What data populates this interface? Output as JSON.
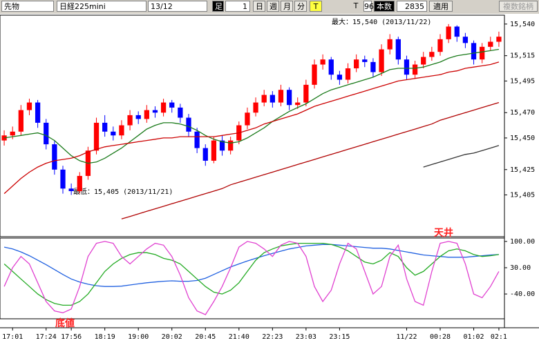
{
  "toolbar": {
    "instrument": "先物",
    "symbol": "日経225mini",
    "contract": "13/12",
    "bar_label": "足",
    "bar_size": "1",
    "day": "日",
    "week": "週",
    "month": "月",
    "minute": "分",
    "tick": "T",
    "tick2": "T",
    "count": "96",
    "count_label": "本数",
    "bars": "2835",
    "apply": "適用",
    "multi": "複数銘柄"
  },
  "chart_data": [
    {
      "type": "candlestick",
      "max_label": "最大：15,540 (2013/11/22)",
      "min_label": "最低：15,405 (2013/11/21)",
      "categories": [
        null,
        "17:01",
        null,
        null,
        null,
        "17:24",
        null,
        null,
        "17:56",
        null,
        null,
        null,
        "18:19",
        null,
        null,
        null,
        "19:00",
        null,
        null,
        null,
        "20:02",
        null,
        null,
        null,
        "20:45",
        null,
        null,
        null,
        "21:40",
        null,
        null,
        null,
        "22:23",
        null,
        null,
        null,
        "23:03",
        null,
        null,
        null,
        "23:15",
        null,
        null,
        null,
        null,
        null,
        null,
        null,
        "11/22",
        null,
        null,
        null,
        "00:28",
        null,
        null,
        null,
        "01:02",
        null,
        null,
        "02:1"
      ],
      "open": [
        15448,
        15452,
        15455,
        15472,
        15478,
        15462,
        15445,
        15425,
        15410,
        15408,
        15420,
        15440,
        15462,
        15455,
        15452,
        15460,
        15468,
        15465,
        15472,
        15470,
        15478,
        15474,
        15466,
        15455,
        15442,
        15432,
        15448,
        15440,
        15448,
        15460,
        15470,
        15478,
        15484,
        15478,
        15488,
        15476,
        15478,
        15492,
        15508,
        15512,
        15500,
        15496,
        15505,
        15512,
        15510,
        15502,
        15520,
        15528,
        15512,
        15500,
        15508,
        15514,
        15518,
        15528,
        15538,
        15530,
        15525,
        15512,
        15522,
        15526
      ],
      "high": [
        15456,
        15459,
        15476,
        15481,
        15480,
        15465,
        15448,
        15428,
        15414,
        15423,
        15443,
        15466,
        15468,
        15459,
        15464,
        15472,
        15471,
        15476,
        15475,
        15481,
        15480,
        15477,
        15469,
        15458,
        15445,
        15451,
        15452,
        15451,
        15463,
        15474,
        15482,
        15488,
        15487,
        15492,
        15490,
        15482,
        15496,
        15512,
        15516,
        15514,
        15503,
        15509,
        15516,
        15515,
        15513,
        15524,
        15532,
        15530,
        15515,
        15511,
        15518,
        15522,
        15532,
        15540,
        15539,
        15533,
        15527,
        15525,
        15530,
        15534
      ],
      "low": [
        15444,
        15449,
        15452,
        15468,
        15458,
        15441,
        15421,
        15406,
        15405,
        15406,
        15417,
        15437,
        15451,
        15448,
        15449,
        15456,
        15461,
        15462,
        15466,
        15467,
        15470,
        15462,
        15451,
        15438,
        15428,
        15430,
        15436,
        15437,
        15445,
        15457,
        15467,
        15475,
        15474,
        15475,
        15472,
        15473,
        15475,
        15489,
        15504,
        15496,
        15492,
        15493,
        15502,
        15506,
        15498,
        15499,
        15516,
        15508,
        15496,
        15497,
        15505,
        15511,
        15515,
        15525,
        15526,
        15521,
        15508,
        15509,
        15519,
        15522
      ],
      "close": [
        15452,
        15455,
        15472,
        15478,
        15462,
        15445,
        15425,
        15410,
        15408,
        15420,
        15440,
        15462,
        15455,
        15452,
        15460,
        15468,
        15465,
        15472,
        15470,
        15478,
        15474,
        15466,
        15455,
        15442,
        15432,
        15448,
        15440,
        15448,
        15460,
        15470,
        15478,
        15484,
        15478,
        15488,
        15476,
        15478,
        15492,
        15508,
        15512,
        15500,
        15496,
        15505,
        15512,
        15510,
        15502,
        15520,
        15528,
        15512,
        15500,
        15508,
        15514,
        15518,
        15528,
        15538,
        15530,
        15525,
        15512,
        15522,
        15526,
        15530
      ],
      "up_color": "#ff0000",
      "down_color": "#0000ff",
      "series": [
        {
          "color": "#1a7a1a",
          "values": [
            15450,
            15451,
            15452,
            15453,
            15454,
            15452,
            15448,
            15442,
            15436,
            15432,
            15430,
            15431,
            15434,
            15438,
            15442,
            15447,
            15452,
            15457,
            15460,
            15462,
            15462,
            15461,
            15459,
            15456,
            15452,
            15449,
            15447,
            15446,
            15447,
            15450,
            15454,
            15458,
            15463,
            15467,
            15471,
            15474,
            15477,
            15481,
            15485,
            15488,
            15490,
            15492,
            15494,
            15496,
            15498,
            15501,
            15504,
            15505,
            15505,
            15505,
            15506,
            15508,
            15510,
            15513,
            15515,
            15516,
            15517,
            15518,
            15519,
            15520
          ]
        },
        {
          "color": "#cc0000",
          "values": [
            15406,
            15412,
            15418,
            15423,
            15427,
            15430,
            15432,
            15433,
            15434,
            15436,
            15439,
            15441,
            15443,
            15444,
            15445,
            15446,
            15447,
            15448,
            15449,
            15450,
            15450,
            15451,
            15451,
            15451,
            15451,
            15451,
            15452,
            15453,
            15454,
            15456,
            15458,
            15461,
            15463,
            15465,
            15467,
            15469,
            15472,
            15475,
            15477,
            15479,
            15481,
            15483,
            15485,
            15487,
            15489,
            15491,
            15493,
            15495,
            15496,
            15497,
            15498,
            15499,
            15500,
            15502,
            15503,
            15505,
            15506,
            15507,
            15508,
            15510
          ]
        },
        {
          "color": "#b00000",
          "values": [
            null,
            null,
            null,
            null,
            null,
            null,
            null,
            null,
            null,
            null,
            null,
            null,
            null,
            null,
            15386,
            15388,
            15390,
            15392,
            15394,
            15396,
            15398,
            15400,
            15402,
            15404,
            15406,
            15408,
            15410,
            15413,
            15415,
            15417,
            15419,
            15421,
            15423,
            15425,
            15427,
            15429,
            15431,
            15433,
            15435,
            15437,
            15439,
            15441,
            15443,
            15445,
            15447,
            15449,
            15451,
            15453,
            15455,
            15457,
            15459,
            15461,
            15464,
            15466,
            15468,
            15470,
            15472,
            15474,
            15476,
            15478
          ]
        },
        {
          "color": "#333333",
          "values": [
            null,
            null,
            null,
            null,
            null,
            null,
            null,
            null,
            null,
            null,
            null,
            null,
            null,
            null,
            null,
            null,
            null,
            null,
            null,
            null,
            null,
            null,
            null,
            null,
            null,
            null,
            null,
            null,
            null,
            null,
            null,
            null,
            null,
            null,
            null,
            null,
            null,
            null,
            null,
            null,
            null,
            null,
            null,
            null,
            null,
            null,
            null,
            null,
            null,
            null,
            15427,
            15429,
            15431,
            15433,
            15435,
            15437,
            15438,
            15440,
            15442,
            15444
          ]
        }
      ],
      "ylim": [
        15372,
        15547
      ],
      "yticks": [
        {
          "value": 15540,
          "label": "15,540"
        },
        {
          "value": 15515,
          "label": "15,515"
        },
        {
          "value": 15495,
          "label": "15,495"
        },
        {
          "value": 15470,
          "label": "15,470"
        },
        {
          "value": 15450,
          "label": "15,450"
        },
        {
          "value": 15425,
          "label": "15,425"
        },
        {
          "value": 15405,
          "label": "15,405"
        }
      ]
    },
    {
      "type": "line",
      "top_label": "天井",
      "bottom_label": "底値",
      "series": [
        {
          "color": "#1e5fe0",
          "values": [
            85,
            80,
            72,
            62,
            50,
            38,
            25,
            12,
            0,
            -8,
            -14,
            -18,
            -20,
            -20,
            -19,
            -16,
            -13,
            -10,
            -8,
            -6,
            -5,
            -6,
            -6,
            -4,
            2,
            12,
            22,
            32,
            40,
            48,
            55,
            62,
            68,
            74,
            80,
            84,
            88,
            90,
            92,
            92,
            90,
            88,
            86,
            84,
            82,
            82,
            80,
            76,
            72,
            68,
            64,
            62,
            60,
            58,
            58,
            58,
            60,
            62,
            64,
            65
          ]
        },
        {
          "color": "#22aa22",
          "values": [
            40,
            20,
            0,
            -20,
            -40,
            -55,
            -65,
            -70,
            -70,
            -60,
            -40,
            -10,
            20,
            40,
            55,
            65,
            70,
            70,
            65,
            55,
            50,
            40,
            20,
            0,
            -20,
            -35,
            -40,
            -30,
            -10,
            20,
            50,
            70,
            80,
            88,
            92,
            95,
            95,
            95,
            95,
            92,
            85,
            75,
            60,
            45,
            40,
            50,
            70,
            60,
            30,
            10,
            20,
            40,
            60,
            75,
            80,
            75,
            65,
            60,
            62,
            65
          ]
        },
        {
          "color": "#e040d0",
          "values": [
            -20,
            30,
            60,
            40,
            -10,
            -60,
            -85,
            -90,
            -80,
            -20,
            60,
            95,
            100,
            95,
            60,
            40,
            60,
            80,
            95,
            90,
            60,
            10,
            -50,
            -85,
            -95,
            -60,
            -20,
            30,
            85,
            100,
            95,
            80,
            60,
            90,
            100,
            95,
            60,
            -20,
            -60,
            -30,
            40,
            95,
            80,
            20,
            -40,
            -20,
            60,
            90,
            0,
            -60,
            -70,
            20,
            95,
            100,
            95,
            40,
            -40,
            -50,
            -20,
            20
          ]
        }
      ],
      "ylim": [
        -106,
        109
      ],
      "yticks": [
        {
          "value": 100,
          "label": "100.00"
        },
        {
          "value": 30,
          "label": "30.00"
        },
        {
          "value": -40,
          "label": "-40.00"
        }
      ]
    }
  ]
}
